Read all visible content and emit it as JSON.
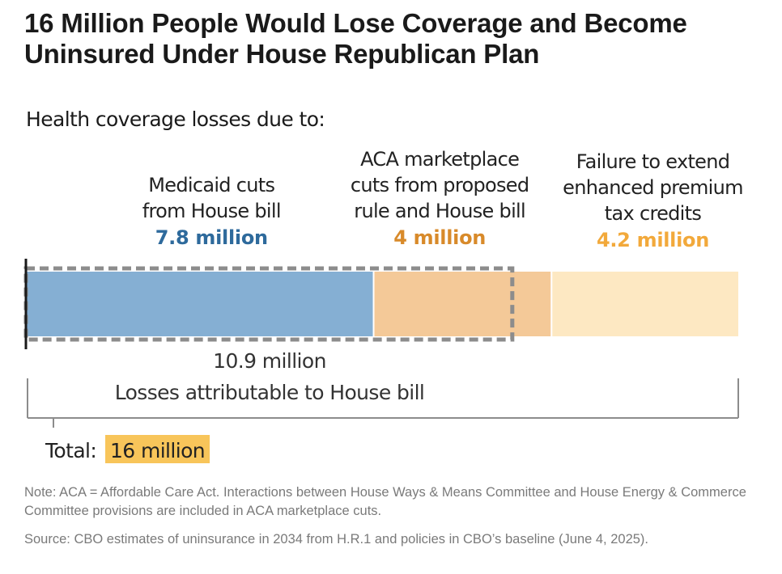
{
  "chart_data": {
    "type": "bar",
    "orientation": "horizontal-stacked",
    "title": "16 Million People Would Lose Coverage and Become Uninsured Under House Republican Plan",
    "subtitle": "Health coverage losses due to:",
    "unit": "million",
    "series": [
      {
        "name": "Medicaid cuts from House bill",
        "label_lines": [
          "Medicaid cuts",
          "from House bill"
        ],
        "value": 7.8,
        "value_label": "7.8 million",
        "color": "#85afd3",
        "label_color": "#2e6a9c"
      },
      {
        "name": "ACA marketplace cuts from proposed rule and House bill",
        "label_lines": [
          "ACA marketplace",
          "cuts from proposed",
          "rule and House bill"
        ],
        "value": 4,
        "value_label": "4 million",
        "color": "#f4c998",
        "label_color": "#d88a2a"
      },
      {
        "name": "Failure to extend enhanced premium tax credits",
        "label_lines": [
          "Failure to extend",
          "enhanced premium",
          "tax credits"
        ],
        "value": 4.2,
        "value_label": "4.2 million",
        "color": "#fde8c2",
        "label_color": "#f2a93b"
      }
    ],
    "house_bill_bracket": {
      "value": 10.9,
      "value_label": "10.9 million",
      "label": "Losses attributable to House bill"
    },
    "total": {
      "value": 16,
      "prefix": "Total:",
      "value_label": "16 million",
      "highlight_color": "#f8c55a"
    },
    "xlim": [
      0,
      16
    ]
  },
  "notes": {
    "note": "Note: ACA = Affordable Care Act. Interactions between House Ways & Means Committee and House Energy & Commerce Committee provisions are included in ACA marketplace cuts.",
    "source": "Source: CBO estimates of uninsurance in 2034 from H.R.1 and policies in CBO’s baseline (June 4, 2025)."
  },
  "colors": {
    "dashed_outline": "#8c8c8c",
    "axis_line": "#1a1a1a",
    "bracket_line": "#8c8c8c"
  }
}
